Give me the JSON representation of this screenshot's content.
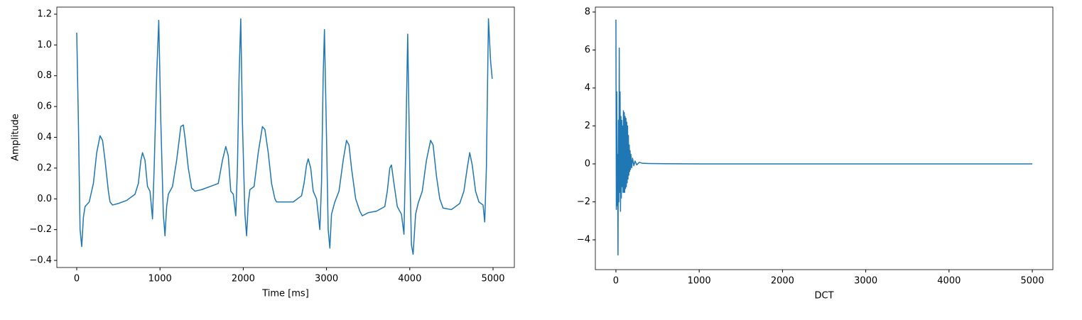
{
  "chart_data": [
    {
      "type": "line",
      "xlabel": "Time [ms]",
      "ylabel": "Amplitude",
      "color": "#1f77b4",
      "xlim": [
        -239,
        5256
      ],
      "ylim": [
        -0.446,
        1.246
      ],
      "xticks": [
        0,
        1000,
        2000,
        3000,
        4000,
        5000
      ],
      "yticks": [
        {
          "value": -0.4,
          "label": "−0.4"
        },
        {
          "value": -0.2,
          "label": "−0.2"
        },
        {
          "value": 0,
          "label": "0.0"
        },
        0.2,
        0.4,
        0.6,
        0.8,
        {
          "value": 1,
          "label": "1.0"
        },
        1.2
      ],
      "x": [
        0,
        20,
        40,
        60,
        80,
        100,
        150,
        200,
        240,
        280,
        310,
        340,
        380,
        400,
        430,
        500,
        600,
        700,
        740,
        770,
        790,
        820,
        850,
        880,
        910,
        930,
        960,
        985,
        1010,
        1040,
        1060,
        1080,
        1100,
        1150,
        1200,
        1250,
        1280,
        1300,
        1340,
        1380,
        1420,
        1500,
        1600,
        1700,
        1750,
        1790,
        1820,
        1850,
        1880,
        1910,
        1930,
        1950,
        1970,
        1990,
        2020,
        2040,
        2060,
        2080,
        2130,
        2180,
        2230,
        2260,
        2300,
        2340,
        2380,
        2400,
        2500,
        2600,
        2700,
        2730,
        2760,
        2780,
        2810,
        2840,
        2880,
        2920,
        2940,
        2960,
        2975,
        3000,
        3020,
        3040,
        3060,
        3100,
        3150,
        3200,
        3240,
        3270,
        3300,
        3350,
        3400,
        3430,
        3500,
        3600,
        3700,
        3730,
        3760,
        3780,
        3810,
        3850,
        3900,
        3930,
        3950,
        3975,
        4000,
        4020,
        4040,
        4070,
        4100,
        4150,
        4200,
        4250,
        4280,
        4320,
        4360,
        4400,
        4500,
        4600,
        4650,
        4690,
        4720,
        4750,
        4790,
        4830,
        4880,
        4900,
        4920,
        4945,
        4970,
        4990
      ],
      "values": [
        1.08,
        0.5,
        -0.2,
        -0.31,
        -0.12,
        -0.05,
        -0.02,
        0.1,
        0.3,
        0.41,
        0.38,
        0.25,
        0.05,
        -0.02,
        -0.04,
        -0.03,
        -0.01,
        0.03,
        0.1,
        0.25,
        0.3,
        0.25,
        0.08,
        0.05,
        -0.13,
        0.2,
        0.8,
        1.16,
        0.5,
        -0.1,
        -0.24,
        -0.05,
        0.03,
        0.08,
        0.25,
        0.47,
        0.48,
        0.4,
        0.2,
        0.07,
        0.05,
        0.06,
        0.08,
        0.1,
        0.25,
        0.34,
        0.28,
        0.05,
        0.03,
        -0.11,
        0.2,
        0.8,
        1.17,
        0.5,
        -0.1,
        -0.24,
        -0.03,
        0.06,
        0.08,
        0.3,
        0.47,
        0.45,
        0.3,
        0.1,
        0.0,
        -0.02,
        -0.02,
        -0.02,
        0.02,
        0.1,
        0.22,
        0.26,
        0.2,
        0.05,
        0.0,
        -0.2,
        0.1,
        0.8,
        1.1,
        0.4,
        -0.2,
        -0.32,
        -0.1,
        -0.02,
        0.05,
        0.25,
        0.38,
        0.35,
        0.2,
        0.0,
        -0.08,
        -0.11,
        -0.09,
        -0.08,
        -0.05,
        0.05,
        0.2,
        0.22,
        0.1,
        -0.05,
        -0.1,
        -0.23,
        0.3,
        1.07,
        0.2,
        -0.3,
        -0.36,
        -0.1,
        -0.03,
        0.05,
        0.25,
        0.38,
        0.35,
        0.15,
        0.0,
        -0.06,
        -0.07,
        -0.03,
        0.05,
        0.2,
        0.3,
        0.22,
        0.05,
        -0.02,
        -0.04,
        -0.15,
        0.2,
        1.17,
        0.9,
        0.78
      ]
    },
    {
      "type": "line",
      "xlabel": "DCT",
      "color": "#1f77b4",
      "xlim": [
        -247,
        5247
      ],
      "ylim": [
        -5.57,
        8.26
      ],
      "xticks": [
        0,
        1000,
        2000,
        3000,
        4000,
        5000
      ],
      "yticks": [
        {
          "value": -4,
          "label": "−4"
        },
        {
          "value": -2,
          "label": "−2"
        },
        0,
        2,
        4,
        6,
        8
      ],
      "x": [
        0,
        5,
        10,
        15,
        20,
        25,
        30,
        35,
        40,
        45,
        50,
        55,
        60,
        65,
        70,
        75,
        80,
        85,
        90,
        95,
        100,
        105,
        110,
        115,
        120,
        125,
        130,
        135,
        140,
        145,
        150,
        155,
        160,
        165,
        170,
        175,
        180,
        190,
        200,
        215,
        230,
        250,
        280,
        320,
        400,
        600,
        1000,
        5000
      ],
      "values": [
        7.6,
        -2.4,
        3.8,
        -2.2,
        0.5,
        -4.8,
        2.3,
        -2.0,
        6.1,
        -1.5,
        3.8,
        -2.5,
        2.5,
        -1.8,
        2.3,
        -1.2,
        2.0,
        -1.5,
        2.8,
        -1.5,
        2.7,
        -1.5,
        2.5,
        -1.3,
        2.4,
        -1.2,
        2.2,
        -1.0,
        2.0,
        -0.8,
        1.5,
        -0.6,
        1.0,
        -0.4,
        0.7,
        -0.3,
        0.5,
        -0.2,
        0.3,
        -0.1,
        0.15,
        -0.05,
        0.08,
        0.03,
        0.02,
        0.01,
        0,
        0
      ]
    }
  ]
}
